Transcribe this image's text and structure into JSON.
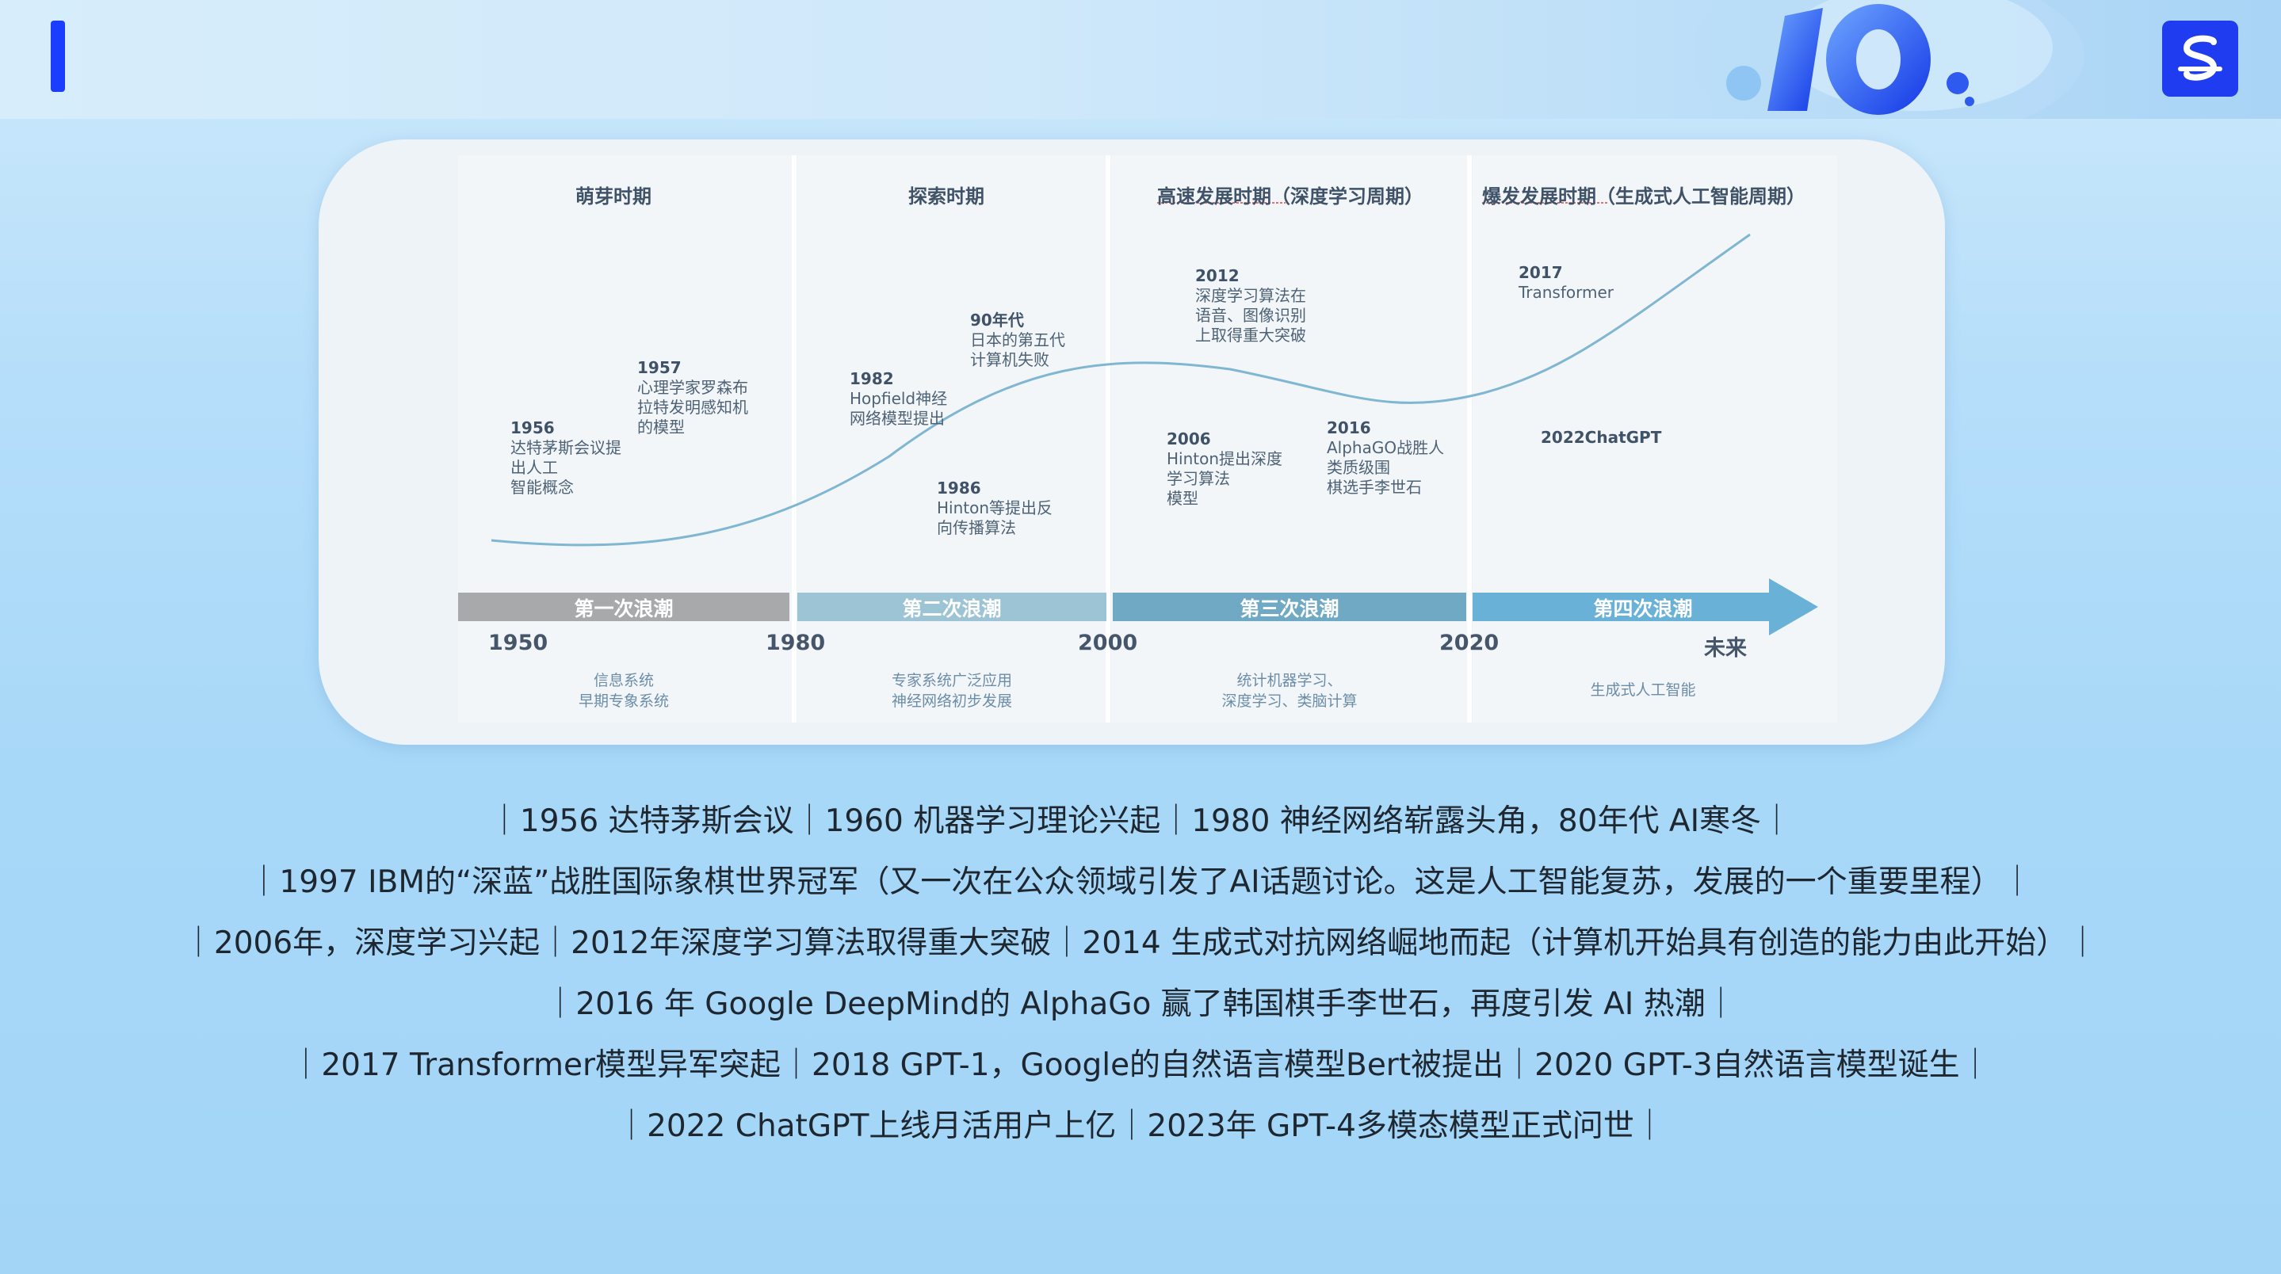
{
  "header": {
    "logo_icon": "s-logo-icon",
    "decoration": "10-anniversary-emblem",
    "brand_color": "#1f3cf0"
  },
  "diagram": {
    "columns": [
      {
        "title": "萌芽时期"
      },
      {
        "title": "探索时期"
      },
      {
        "title": "高速发展时期（深度学习周期）"
      },
      {
        "title": "爆发发展时期（生成式人工智能周期）"
      }
    ],
    "events": [
      {
        "year": "1956",
        "text": "达特茅斯会议提\n出人工\n智能概念"
      },
      {
        "year": "1957",
        "text": "心理学家罗森布\n拉特发明感知机\n的模型"
      },
      {
        "year": "1982",
        "text": "Hopfield神经\n网络模型提出"
      },
      {
        "year": "90年代",
        "text": "日本的第五代\n计算机失败"
      },
      {
        "year": "1986",
        "text": "Hinton等提出反\n向传播算法"
      },
      {
        "year": "2012",
        "text": "深度学习算法在\n语音、图像识别\n上取得重大突破"
      },
      {
        "year": "2006",
        "text": "Hinton提出深度\n学习算法\n模型"
      },
      {
        "year": "2016",
        "text": "AlphaGO战胜人\n类质级围\n棋选手李世石"
      },
      {
        "year": "2017",
        "text": "Transformer"
      },
      {
        "year": "2022ChatGPT",
        "text": ""
      }
    ],
    "waves": [
      "第一次浪潮",
      "第二次浪潮",
      "第三次浪潮",
      "第四次浪潮"
    ],
    "years": [
      "1950",
      "1980",
      "2000",
      "2020",
      "未来"
    ],
    "footnotes": [
      "信息系统\n早期专象系统",
      "专家系统广泛应用\n神经网络初步发展",
      "统计机器学习、\n深度学习、类脑计算",
      "生成式人工智能"
    ]
  },
  "summary": [
    "｜1956 达特茅斯会议｜1960 机器学习理论兴起｜1980 神经网络崭露头角，80年代 AI寒冬｜",
    "｜1997 IBM的“深蓝”战胜国际象棋世界冠军（又一次在公众领域引发了AI话题讨论。这是人工智能复苏，发展的一个重要里程）｜",
    "｜2006年，深度学习兴起｜2012年深度学习算法取得重大突破｜2014 生成式对抗网络崛地而起（计算机开始具有创造的能力由此开始）｜",
    "｜2016 年 Google  DeepMind的 AlphaGo 赢了韩国棋手李世石，再度引发 AI 热潮｜",
    "｜2017 Transformer模型异军突起｜2018 GPT-1，Google的自然语言模型Bert被提出｜2020 GPT-3自然语言模型诞生｜",
    "｜2022 ChatGPT上线月活用户上亿｜2023年 GPT-4多模态模型正式问世｜"
  ]
}
